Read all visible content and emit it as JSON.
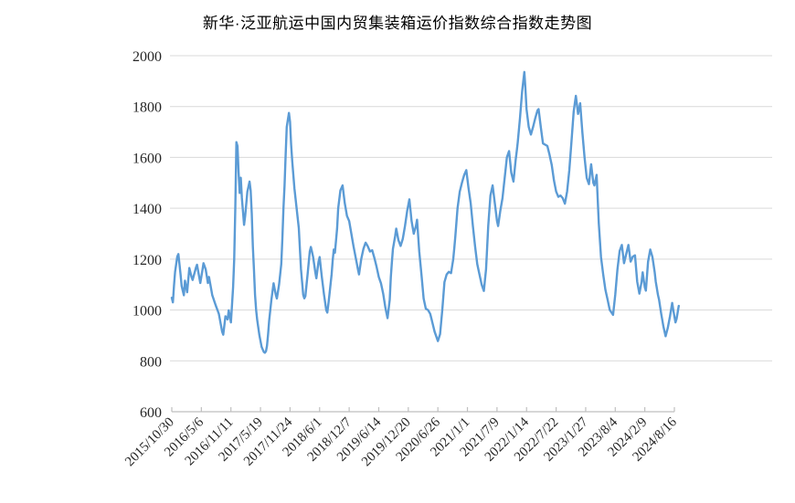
{
  "page": {
    "background": "#FFFFFF"
  },
  "chart_data": {
    "type": "line",
    "title": "新华·泛亚航运中国内贸集装箱运价指数综合指数走势图",
    "legend": "none",
    "grid": true,
    "colors": {
      "line": "#5B9BD5",
      "gridline": "#D9D9D9",
      "axis": "#BFBFBF",
      "label": "#262626",
      "title": "#000000"
    },
    "x_axis": {
      "tick_labels": [
        "2015/10/30",
        "2016/5/6",
        "2016/11/11",
        "2017/5/19",
        "2017/11/24",
        "2018/6/1",
        "2018/12/7",
        "2019/6/14",
        "2019/12/20",
        "2020/6/26",
        "2021/1/1",
        "2021/7/9",
        "2022/1/14",
        "2022/7/22",
        "2023/1/27",
        "2023/8/4",
        "2024/2/9",
        "2024/8/16"
      ],
      "weeks_per_tick": 27,
      "frequency": "weekly"
    },
    "y_axis": {
      "min": 600,
      "max": 2000,
      "ticks": [
        600,
        800,
        1000,
        1200,
        1400,
        1600,
        1800,
        2000
      ]
    },
    "series": [
      {
        "name": "综合指数",
        "color": "#5B9BD5",
        "x_unit": "weeks_since_2015_10_30",
        "points": [
          [
            0,
            1048
          ],
          [
            1,
            1030
          ],
          [
            2,
            1095
          ],
          [
            3,
            1150
          ],
          [
            5,
            1210
          ],
          [
            6,
            1220
          ],
          [
            8,
            1140
          ],
          [
            9,
            1094
          ],
          [
            11,
            1058
          ],
          [
            12,
            1115
          ],
          [
            14,
            1070
          ],
          [
            16,
            1165
          ],
          [
            18,
            1130
          ],
          [
            19,
            1118
          ],
          [
            22,
            1166
          ],
          [
            23,
            1178
          ],
          [
            26,
            1106
          ],
          [
            29,
            1184
          ],
          [
            31,
            1160
          ],
          [
            33,
            1106
          ],
          [
            34,
            1130
          ],
          [
            37,
            1058
          ],
          [
            40,
            1020
          ],
          [
            43,
            985
          ],
          [
            46,
            915
          ],
          [
            47,
            903
          ],
          [
            49,
            975
          ],
          [
            51,
            963
          ],
          [
            52,
            999
          ],
          [
            54,
            951
          ],
          [
            56,
            1090
          ],
          [
            57,
            1200
          ],
          [
            58,
            1400
          ],
          [
            59,
            1660
          ],
          [
            60,
            1645
          ],
          [
            61,
            1540
          ],
          [
            62,
            1460
          ],
          [
            63,
            1520
          ],
          [
            64,
            1440
          ],
          [
            66,
            1335
          ],
          [
            67,
            1370
          ],
          [
            69,
            1465
          ],
          [
            71,
            1505
          ],
          [
            72,
            1470
          ],
          [
            73,
            1380
          ],
          [
            74,
            1250
          ],
          [
            75,
            1160
          ],
          [
            76,
            1060
          ],
          [
            77,
            1000
          ],
          [
            78,
            960
          ],
          [
            80,
            900
          ],
          [
            82,
            855
          ],
          [
            84,
            835
          ],
          [
            85,
            832
          ],
          [
            86,
            838
          ],
          [
            87,
            860
          ],
          [
            88,
            905
          ],
          [
            89,
            960
          ],
          [
            90,
            1000
          ],
          [
            91,
            1040
          ],
          [
            93,
            1105
          ],
          [
            95,
            1060
          ],
          [
            96,
            1045
          ],
          [
            98,
            1100
          ],
          [
            100,
            1180
          ],
          [
            101,
            1280
          ],
          [
            102,
            1400
          ],
          [
            103,
            1490
          ],
          [
            104,
            1610
          ],
          [
            105,
            1720
          ],
          [
            107,
            1775
          ],
          [
            108,
            1740
          ],
          [
            109,
            1650
          ],
          [
            110,
            1585
          ],
          [
            112,
            1478
          ],
          [
            114,
            1400
          ],
          [
            116,
            1322
          ],
          [
            117,
            1240
          ],
          [
            118,
            1160
          ],
          [
            120,
            1060
          ],
          [
            121,
            1046
          ],
          [
            122,
            1055
          ],
          [
            124,
            1140
          ],
          [
            126,
            1230
          ],
          [
            127,
            1248
          ],
          [
            129,
            1210
          ],
          [
            131,
            1150
          ],
          [
            132,
            1125
          ],
          [
            134,
            1190
          ],
          [
            135,
            1208
          ],
          [
            137,
            1130
          ],
          [
            139,
            1060
          ],
          [
            141,
            1000
          ],
          [
            142,
            990
          ],
          [
            144,
            1060
          ],
          [
            146,
            1140
          ],
          [
            147,
            1196
          ],
          [
            148,
            1238
          ],
          [
            149,
            1225
          ],
          [
            151,
            1320
          ],
          [
            152,
            1400
          ],
          [
            154,
            1470
          ],
          [
            156,
            1490
          ],
          [
            158,
            1420
          ],
          [
            160,
            1370
          ],
          [
            162,
            1350
          ],
          [
            164,
            1300
          ],
          [
            166,
            1250
          ],
          [
            168,
            1205
          ],
          [
            170,
            1160
          ],
          [
            171,
            1140
          ],
          [
            173,
            1200
          ],
          [
            175,
            1240
          ],
          [
            177,
            1265
          ],
          [
            179,
            1250
          ],
          [
            181,
            1230
          ],
          [
            183,
            1235
          ],
          [
            185,
            1205
          ],
          [
            187,
            1170
          ],
          [
            189,
            1130
          ],
          [
            191,
            1105
          ],
          [
            193,
            1065
          ],
          [
            195,
            1010
          ],
          [
            197,
            968
          ],
          [
            199,
            1040
          ],
          [
            200,
            1130
          ],
          [
            202,
            1240
          ],
          [
            204,
            1290
          ],
          [
            205,
            1320
          ],
          [
            207,
            1275
          ],
          [
            209,
            1252
          ],
          [
            211,
            1280
          ],
          [
            213,
            1330
          ],
          [
            215,
            1390
          ],
          [
            217,
            1435
          ],
          [
            219,
            1350
          ],
          [
            221,
            1300
          ],
          [
            223,
            1330
          ],
          [
            224,
            1355
          ],
          [
            226,
            1230
          ],
          [
            228,
            1140
          ],
          [
            230,
            1045
          ],
          [
            232,
            1005
          ],
          [
            234,
            1000
          ],
          [
            236,
            985
          ],
          [
            238,
            950
          ],
          [
            240,
            915
          ],
          [
            242,
            890
          ],
          [
            243,
            878
          ],
          [
            245,
            905
          ],
          [
            247,
            1000
          ],
          [
            249,
            1110
          ],
          [
            251,
            1140
          ],
          [
            253,
            1150
          ],
          [
            255,
            1145
          ],
          [
            257,
            1200
          ],
          [
            259,
            1290
          ],
          [
            261,
            1400
          ],
          [
            263,
            1465
          ],
          [
            265,
            1500
          ],
          [
            267,
            1530
          ],
          [
            269,
            1550
          ],
          [
            271,
            1480
          ],
          [
            273,
            1420
          ],
          [
            275,
            1330
          ],
          [
            277,
            1250
          ],
          [
            279,
            1180
          ],
          [
            281,
            1140
          ],
          [
            283,
            1100
          ],
          [
            285,
            1075
          ],
          [
            287,
            1160
          ],
          [
            289,
            1330
          ],
          [
            291,
            1450
          ],
          [
            293,
            1490
          ],
          [
            295,
            1420
          ],
          [
            297,
            1350
          ],
          [
            298,
            1330
          ],
          [
            300,
            1390
          ],
          [
            302,
            1440
          ],
          [
            304,
            1520
          ],
          [
            306,
            1600
          ],
          [
            308,
            1625
          ],
          [
            310,
            1540
          ],
          [
            312,
            1505
          ],
          [
            314,
            1590
          ],
          [
            316,
            1660
          ],
          [
            318,
            1753
          ],
          [
            320,
            1860
          ],
          [
            322,
            1936
          ],
          [
            323,
            1870
          ],
          [
            324,
            1790
          ],
          [
            326,
            1720
          ],
          [
            328,
            1690
          ],
          [
            330,
            1720
          ],
          [
            332,
            1755
          ],
          [
            334,
            1785
          ],
          [
            335,
            1790
          ],
          [
            337,
            1720
          ],
          [
            339,
            1655
          ],
          [
            341,
            1650
          ],
          [
            343,
            1645
          ],
          [
            345,
            1610
          ],
          [
            347,
            1570
          ],
          [
            349,
            1510
          ],
          [
            351,
            1466
          ],
          [
            353,
            1445
          ],
          [
            355,
            1450
          ],
          [
            357,
            1440
          ],
          [
            359,
            1418
          ],
          [
            361,
            1466
          ],
          [
            363,
            1549
          ],
          [
            365,
            1663
          ],
          [
            367,
            1780
          ],
          [
            369,
            1842
          ],
          [
            371,
            1771
          ],
          [
            373,
            1813
          ],
          [
            375,
            1699
          ],
          [
            377,
            1600
          ],
          [
            379,
            1519
          ],
          [
            381,
            1495
          ],
          [
            383,
            1573
          ],
          [
            385,
            1500
          ],
          [
            386,
            1490
          ],
          [
            388,
            1531
          ],
          [
            390,
            1340
          ],
          [
            392,
            1208
          ],
          [
            394,
            1140
          ],
          [
            396,
            1080
          ],
          [
            398,
            1041
          ],
          [
            400,
            1000
          ],
          [
            403,
            981
          ],
          [
            405,
            1060
          ],
          [
            407,
            1160
          ],
          [
            409,
            1232
          ],
          [
            411,
            1256
          ],
          [
            413,
            1184
          ],
          [
            415,
            1220
          ],
          [
            417,
            1256
          ],
          [
            419,
            1190
          ],
          [
            421,
            1210
          ],
          [
            423,
            1215
          ],
          [
            425,
            1112
          ],
          [
            427,
            1064
          ],
          [
            429,
            1110
          ],
          [
            430,
            1148
          ],
          [
            432,
            1090
          ],
          [
            433,
            1076
          ],
          [
            435,
            1190
          ],
          [
            437,
            1238
          ],
          [
            439,
            1208
          ],
          [
            441,
            1150
          ],
          [
            442,
            1112
          ],
          [
            444,
            1060
          ],
          [
            445,
            1041
          ],
          [
            447,
            985
          ],
          [
            449,
            935
          ],
          [
            451,
            897
          ],
          [
            453,
            930
          ],
          [
            455,
            975
          ],
          [
            457,
            1028
          ],
          [
            458,
            1000
          ],
          [
            460,
            951
          ],
          [
            461,
            965
          ],
          [
            463,
            1016
          ]
        ]
      }
    ]
  }
}
